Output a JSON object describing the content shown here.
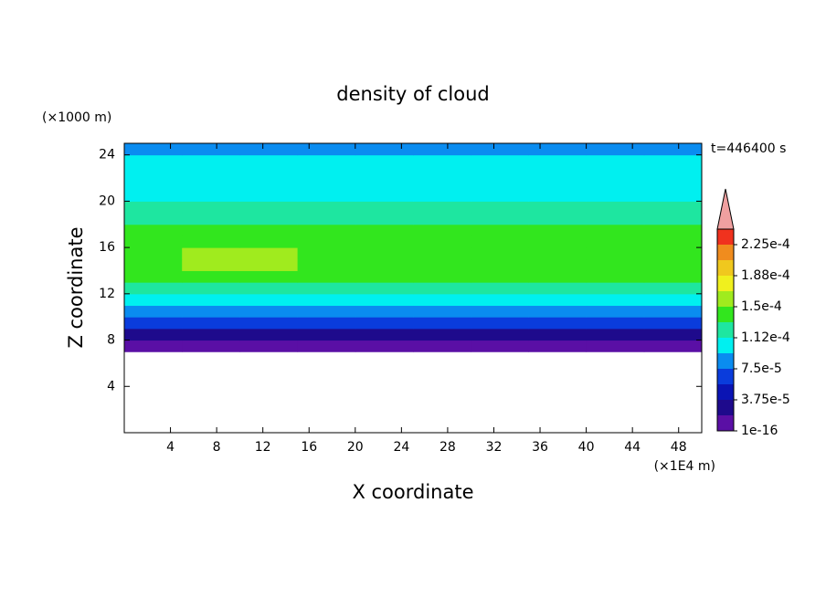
{
  "chart_data": {
    "type": "heatmap",
    "title": "density of cloud",
    "y_unit": "(×1000 m)",
    "x_unit": "(×1E4 m)",
    "time_label": "t=446400 s",
    "xlabel": "X coordinate",
    "ylabel": "Z coordinate",
    "xlim": [
      0,
      50
    ],
    "ylim": [
      0,
      25
    ],
    "xticks": [
      4,
      8,
      12,
      16,
      20,
      24,
      28,
      32,
      36,
      40,
      44,
      48
    ],
    "yticks": [
      4,
      8,
      12,
      16,
      20,
      24
    ],
    "x": [
      2.5,
      7.5,
      12.5,
      17.5,
      22.5,
      27.5,
      32.5,
      37.5,
      42.5,
      47.5
    ],
    "z": [
      0.5,
      1.5,
      2.5,
      3.5,
      4.5,
      5.5,
      6.5,
      7.5,
      8.5,
      9.5,
      10.5,
      11.5,
      12.5,
      13.5,
      14.5,
      15.5,
      16.5,
      17.5,
      18.5,
      19.5,
      20.5,
      21.5,
      22.5,
      23.5,
      24.5
    ],
    "values": [
      [
        null,
        null,
        null,
        null,
        null,
        null,
        null,
        null,
        null,
        null
      ],
      [
        null,
        null,
        null,
        null,
        null,
        null,
        null,
        null,
        null,
        null
      ],
      [
        null,
        null,
        null,
        null,
        null,
        null,
        null,
        null,
        null,
        null
      ],
      [
        null,
        null,
        null,
        null,
        null,
        null,
        null,
        null,
        null,
        null
      ],
      [
        null,
        null,
        null,
        null,
        null,
        null,
        null,
        null,
        null,
        null
      ],
      [
        null,
        null,
        null,
        null,
        null,
        null,
        null,
        null,
        null,
        null
      ],
      [
        null,
        null,
        null,
        null,
        null,
        null,
        null,
        null,
        null,
        null
      ],
      [
        1e-05,
        1e-05,
        1e-05,
        1e-05,
        1e-05,
        1e-05,
        1e-05,
        1e-05,
        1e-05,
        1e-05
      ],
      [
        3e-05,
        3e-05,
        3e-05,
        3e-05,
        3e-05,
        3e-05,
        3e-05,
        3e-05,
        3e-05,
        3e-05
      ],
      [
        6.5e-05,
        6.5e-05,
        6.5e-05,
        6.5e-05,
        6.5e-05,
        6.5e-05,
        6.5e-05,
        6.5e-05,
        6.5e-05,
        6.5e-05
      ],
      [
        8.5e-05,
        8.5e-05,
        8.5e-05,
        8.5e-05,
        8.5e-05,
        8.5e-05,
        8.5e-05,
        8.5e-05,
        8.5e-05,
        8.5e-05
      ],
      [
        0.0001,
        0.0001,
        0.0001,
        0.0001,
        0.0001,
        0.0001,
        0.0001,
        0.0001,
        0.0001,
        0.0001
      ],
      [
        0.00012,
        0.00012,
        0.00012,
        0.00012,
        0.00012,
        0.00012,
        0.00012,
        0.00012,
        0.00012,
        0.00012
      ],
      [
        0.00014,
        0.00014,
        0.00014,
        0.00014,
        0.00014,
        0.00014,
        0.00014,
        0.00014,
        0.00014,
        0.00014
      ],
      [
        0.00014,
        0.000155,
        0.000155,
        0.00014,
        0.00014,
        0.00014,
        0.00014,
        0.00014,
        0.00014,
        0.00014
      ],
      [
        0.00014,
        0.000155,
        0.000155,
        0.00014,
        0.00014,
        0.00014,
        0.00014,
        0.00014,
        0.00014,
        0.00014
      ],
      [
        0.00014,
        0.00014,
        0.00014,
        0.00014,
        0.00014,
        0.00014,
        0.00014,
        0.00014,
        0.00014,
        0.00014
      ],
      [
        0.00014,
        0.00014,
        0.00014,
        0.00014,
        0.00014,
        0.00014,
        0.00014,
        0.00014,
        0.00014,
        0.00014
      ],
      [
        0.00012,
        0.00012,
        0.00012,
        0.00012,
        0.00012,
        0.00012,
        0.00012,
        0.00012,
        0.00012,
        0.00012
      ],
      [
        0.00012,
        0.00012,
        0.00012,
        0.00012,
        0.00012,
        0.00012,
        0.00012,
        0.00012,
        0.00012,
        0.00012
      ],
      [
        0.000105,
        0.000105,
        0.000105,
        0.000105,
        0.000105,
        0.000105,
        0.000105,
        0.000105,
        0.000105,
        0.000105
      ],
      [
        0.000105,
        0.000105,
        0.000105,
        0.000105,
        0.000105,
        0.000105,
        0.000105,
        0.000105,
        0.000105,
        0.000105
      ],
      [
        0.000105,
        0.000105,
        0.000105,
        0.000105,
        0.000105,
        0.000105,
        0.000105,
        0.000105,
        0.000105,
        0.000105
      ],
      [
        0.000105,
        0.000105,
        0.000105,
        0.000105,
        0.000105,
        0.000105,
        0.000105,
        0.000105,
        0.000105,
        0.000105
      ],
      [
        8.5e-05,
        8.5e-05,
        8.5e-05,
        8.5e-05,
        8.5e-05,
        8.5e-05,
        8.5e-05,
        8.5e-05,
        8.5e-05,
        8.5e-05
      ]
    ],
    "colorbar": {
      "levels": [
        1e-16,
        1.875e-05,
        3.75e-05,
        5.625e-05,
        7.5e-05,
        9.375e-05,
        0.0001125,
        0.00013125,
        0.00015,
        0.00016875,
        0.0001875,
        0.00020625,
        0.000225,
        0.00024375
      ],
      "colors": [
        "#5a0fa5",
        "#1e0a8c",
        "#0a14b4",
        "#0a3cdc",
        "#0a8cf0",
        "#00f0f0",
        "#1ee6a0",
        "#32e61e",
        "#a0eb1e",
        "#f0f01e",
        "#f0c81e",
        "#f08c1e",
        "#f0321e"
      ],
      "extend_color": "#f0a0a0",
      "ticks": [
        {
          "value": 1e-16,
          "label": "1e-16"
        },
        {
          "value": 3.75e-05,
          "label": "3.75e-5"
        },
        {
          "value": 7.5e-05,
          "label": "7.5e-5"
        },
        {
          "value": 0.0001125,
          "label": "1.12e-4"
        },
        {
          "value": 0.00015,
          "label": "1.5e-4"
        },
        {
          "value": 0.0001875,
          "label": "1.88e-4"
        },
        {
          "value": 0.000225,
          "label": "2.25e-4"
        }
      ]
    }
  }
}
